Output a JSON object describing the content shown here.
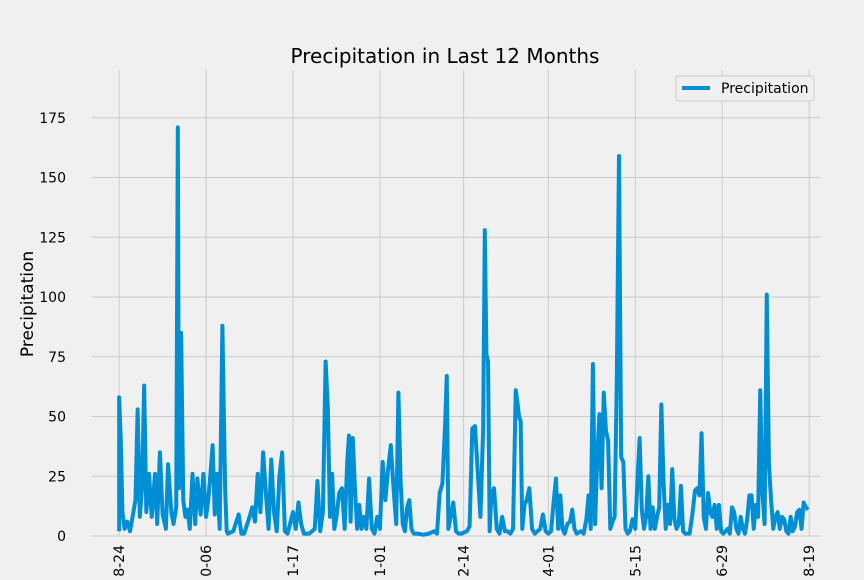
{
  "chart_data": {
    "type": "line",
    "title": "Precipitation in Last 12 Months",
    "xlabel": "",
    "ylabel": "Precipitation",
    "ylim": [
      0,
      195
    ],
    "y_ticks": [
      0,
      25,
      50,
      75,
      100,
      125,
      150,
      175
    ],
    "x_tick_labels": [
      "08-24",
      "0-06",
      "1-17",
      "01-01",
      "02-14",
      "04-01",
      "05-15",
      "06-29",
      "08-19"
    ],
    "grid": true,
    "legend_position": "top-right",
    "series": [
      {
        "name": "Precipitation",
        "color": "#008fd5",
        "points": [
          [
            0,
            2
          ],
          [
            0,
            58
          ],
          [
            0.3,
            40
          ],
          [
            0.6,
            10
          ],
          [
            1,
            3
          ],
          [
            1.5,
            6
          ],
          [
            2,
            2
          ],
          [
            3,
            15
          ],
          [
            3.4,
            53
          ],
          [
            3.8,
            8
          ],
          [
            4.2,
            20
          ],
          [
            4.6,
            63
          ],
          [
            5,
            10
          ],
          [
            5.5,
            26
          ],
          [
            6,
            8
          ],
          [
            6.6,
            26
          ],
          [
            7,
            5
          ],
          [
            7.5,
            35
          ],
          [
            8,
            9
          ],
          [
            8.6,
            3
          ],
          [
            9,
            30
          ],
          [
            9.6,
            10
          ],
          [
            10,
            5
          ],
          [
            10.5,
            12
          ],
          [
            10.8,
            171
          ],
          [
            11,
            20
          ],
          [
            11.4,
            85
          ],
          [
            11.8,
            15
          ],
          [
            12.2,
            8
          ],
          [
            12.6,
            11
          ],
          [
            13,
            3
          ],
          [
            13.5,
            26
          ],
          [
            14,
            5
          ],
          [
            14.4,
            24
          ],
          [
            15,
            9
          ],
          [
            15.5,
            26
          ],
          [
            16,
            8
          ],
          [
            16.4,
            15
          ],
          [
            16.8,
            26
          ],
          [
            17.2,
            38
          ],
          [
            17.6,
            9
          ],
          [
            18,
            26
          ],
          [
            18.5,
            3
          ],
          [
            19,
            88
          ],
          [
            19.5,
            20
          ],
          [
            19.8,
            2
          ],
          [
            20,
            1
          ],
          [
            21,
            2
          ],
          [
            22,
            9
          ],
          [
            22.5,
            1
          ],
          [
            23,
            1
          ],
          [
            24,
            8
          ],
          [
            24.5,
            12
          ],
          [
            25,
            6
          ],
          [
            25.5,
            26
          ],
          [
            26,
            10
          ],
          [
            26.5,
            35
          ],
          [
            27,
            18
          ],
          [
            27.5,
            3
          ],
          [
            28,
            32
          ],
          [
            28.5,
            10
          ],
          [
            29,
            2
          ],
          [
            29.5,
            25
          ],
          [
            30,
            35
          ],
          [
            30.5,
            2
          ],
          [
            31,
            1
          ],
          [
            32,
            10
          ],
          [
            32.5,
            3
          ],
          [
            33,
            14
          ],
          [
            33.5,
            5
          ],
          [
            34,
            1
          ],
          [
            35,
            1
          ],
          [
            36,
            3
          ],
          [
            36.5,
            23
          ],
          [
            37,
            2
          ],
          [
            37.5,
            10
          ],
          [
            38,
            73
          ],
          [
            38.4,
            54
          ],
          [
            38.8,
            8
          ],
          [
            39.2,
            26
          ],
          [
            39.6,
            3
          ],
          [
            40,
            8
          ],
          [
            40.5,
            18
          ],
          [
            41,
            20
          ],
          [
            41.5,
            3
          ],
          [
            42,
            32
          ],
          [
            42.3,
            42
          ],
          [
            42.6,
            6
          ],
          [
            43,
            41
          ],
          [
            43.4,
            20
          ],
          [
            43.8,
            3
          ],
          [
            44.2,
            13
          ],
          [
            44.6,
            3
          ],
          [
            45,
            8
          ],
          [
            45.5,
            3
          ],
          [
            46,
            24
          ],
          [
            46.5,
            3
          ],
          [
            47,
            1
          ],
          [
            47.5,
            8
          ],
          [
            48,
            3
          ],
          [
            48.5,
            31
          ],
          [
            49,
            15
          ],
          [
            49.5,
            28
          ],
          [
            50,
            38
          ],
          [
            50.5,
            20
          ],
          [
            51,
            5
          ],
          [
            51.4,
            60
          ],
          [
            51.8,
            23
          ],
          [
            52.2,
            5
          ],
          [
            52.6,
            2
          ],
          [
            53,
            12
          ],
          [
            53.4,
            15
          ],
          [
            53.8,
            3
          ],
          [
            54.2,
            1
          ],
          [
            55,
            1
          ],
          [
            56,
            0.5
          ],
          [
            57,
            1
          ],
          [
            58,
            2
          ],
          [
            58.5,
            1
          ],
          [
            59,
            18
          ],
          [
            59.5,
            22
          ],
          [
            60,
            47
          ],
          [
            60.3,
            67
          ],
          [
            60.6,
            3
          ],
          [
            61,
            8
          ],
          [
            61.5,
            14
          ],
          [
            62,
            2
          ],
          [
            62.5,
            1
          ],
          [
            63,
            1
          ],
          [
            64,
            2
          ],
          [
            64.5,
            4
          ],
          [
            65,
            45
          ],
          [
            65.5,
            46
          ],
          [
            66,
            27
          ],
          [
            66.5,
            8
          ],
          [
            67,
            45
          ],
          [
            67.3,
            128
          ],
          [
            67.6,
            76
          ],
          [
            67.9,
            73
          ],
          [
            68.2,
            2
          ],
          [
            68.5,
            17
          ],
          [
            69,
            20
          ],
          [
            69.5,
            3
          ],
          [
            70,
            1
          ],
          [
            70.5,
            8
          ],
          [
            71,
            2
          ],
          [
            71.5,
            2
          ],
          [
            72,
            1
          ],
          [
            72.5,
            3
          ],
          [
            73,
            61
          ],
          [
            73.3,
            56
          ],
          [
            73.6,
            50
          ],
          [
            73.9,
            48
          ],
          [
            74.2,
            3
          ],
          [
            74.6,
            13
          ],
          [
            75,
            15
          ],
          [
            75.5,
            20
          ],
          [
            76,
            3
          ],
          [
            76.5,
            1
          ],
          [
            77,
            2
          ],
          [
            77.5,
            3
          ],
          [
            78,
            9
          ],
          [
            78.5,
            2
          ],
          [
            79,
            1
          ],
          [
            79.5,
            2
          ],
          [
            80,
            15
          ],
          [
            80.4,
            24
          ],
          [
            80.8,
            3
          ],
          [
            81.2,
            17
          ],
          [
            81.6,
            3
          ],
          [
            82,
            1
          ],
          [
            82.5,
            5
          ],
          [
            83,
            6
          ],
          [
            83.4,
            11
          ],
          [
            83.8,
            3
          ],
          [
            84.2,
            1
          ],
          [
            85,
            2
          ],
          [
            85.5,
            1
          ],
          [
            86,
            7
          ],
          [
            86.4,
            17
          ],
          [
            86.8,
            3
          ],
          [
            87.2,
            72
          ],
          [
            87.6,
            5
          ],
          [
            88,
            33
          ],
          [
            88.4,
            51
          ],
          [
            88.8,
            20
          ],
          [
            89.2,
            60
          ],
          [
            89.6,
            44
          ],
          [
            90,
            40
          ],
          [
            90.4,
            3
          ],
          [
            90.8,
            6
          ],
          [
            91.2,
            8
          ],
          [
            91.6,
            66
          ],
          [
            92,
            159
          ],
          [
            92.4,
            33
          ],
          [
            92.8,
            31
          ],
          [
            93.2,
            3
          ],
          [
            93.6,
            1
          ],
          [
            94,
            2
          ],
          [
            94.5,
            7
          ],
          [
            95,
            3
          ],
          [
            95.5,
            28
          ],
          [
            95.8,
            41
          ],
          [
            96.2,
            11
          ],
          [
            96.6,
            3
          ],
          [
            97,
            8
          ],
          [
            97.4,
            25
          ],
          [
            97.8,
            3
          ],
          [
            98.2,
            12
          ],
          [
            98.6,
            3
          ],
          [
            99,
            8
          ],
          [
            99.4,
            12
          ],
          [
            99.8,
            55
          ],
          [
            100.2,
            23
          ],
          [
            100.6,
            3
          ],
          [
            101,
            13
          ],
          [
            101.4,
            5
          ],
          [
            101.8,
            28
          ],
          [
            102.2,
            7
          ],
          [
            102.6,
            3
          ],
          [
            103,
            5
          ],
          [
            103.4,
            21
          ],
          [
            103.8,
            2
          ],
          [
            104.2,
            1
          ],
          [
            105,
            1
          ],
          [
            105.5,
            9
          ],
          [
            106,
            19
          ],
          [
            106.4,
            20
          ],
          [
            106.8,
            17
          ],
          [
            107.2,
            43
          ],
          [
            107.6,
            8
          ],
          [
            108,
            3
          ],
          [
            108.4,
            18
          ],
          [
            108.8,
            10
          ],
          [
            109.2,
            8
          ],
          [
            109.6,
            13
          ],
          [
            110,
            3
          ],
          [
            110.4,
            13
          ],
          [
            110.8,
            2
          ],
          [
            111.2,
            1
          ],
          [
            111.6,
            2
          ],
          [
            112,
            3
          ],
          [
            112.4,
            1
          ],
          [
            112.8,
            12
          ],
          [
            113.2,
            10
          ],
          [
            113.6,
            3
          ],
          [
            114,
            1
          ],
          [
            114.4,
            8
          ],
          [
            114.8,
            3
          ],
          [
            115.2,
            1
          ],
          [
            115.6,
            7
          ],
          [
            116,
            17
          ],
          [
            116.4,
            17
          ],
          [
            116.8,
            3
          ],
          [
            117.2,
            13
          ],
          [
            117.6,
            8
          ],
          [
            118,
            61
          ],
          [
            118.4,
            18
          ],
          [
            118.8,
            5
          ],
          [
            119.2,
            101
          ],
          [
            119.6,
            30
          ],
          [
            120,
            15
          ],
          [
            120.4,
            3
          ],
          [
            120.8,
            8
          ],
          [
            121.2,
            10
          ],
          [
            121.6,
            3
          ],
          [
            122,
            8
          ],
          [
            122.4,
            7
          ],
          [
            122.8,
            2
          ],
          [
            123.2,
            1
          ],
          [
            123.6,
            8
          ],
          [
            124,
            2
          ],
          [
            124.4,
            4
          ],
          [
            124.8,
            10
          ],
          [
            125.2,
            11
          ],
          [
            125.6,
            3
          ],
          [
            126,
            14
          ],
          [
            126.4,
            12
          ],
          [
            126.8,
            11
          ]
        ]
      }
    ]
  }
}
